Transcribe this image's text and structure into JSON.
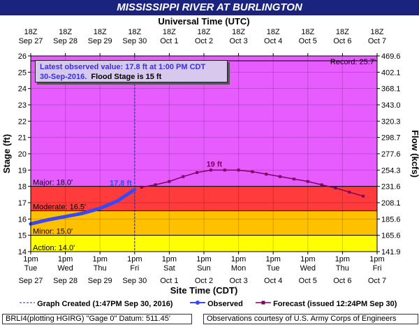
{
  "title": "MISSISSIPPI RIVER AT BURLINGTON",
  "chart_data": {
    "type": "line",
    "top_axis_title": "Universal Time (UTC)",
    "bottom_axis_title": "Site Time (CDT)",
    "ylabel": "Stage (ft)",
    "ylabel_right": "Flow (kcfs)",
    "ylim": [
      14,
      26
    ],
    "xlim": [
      0,
      10
    ],
    "top_ticks": [
      {
        "x": 0,
        "h": "18Z",
        "d": "Sep 27"
      },
      {
        "x": 1,
        "h": "18Z",
        "d": "Sep 28"
      },
      {
        "x": 2,
        "h": "18Z",
        "d": "Sep 29"
      },
      {
        "x": 3,
        "h": "18Z",
        "d": "Sep 30"
      },
      {
        "x": 4,
        "h": "18Z",
        "d": "Oct 1"
      },
      {
        "x": 5,
        "h": "18Z",
        "d": "Oct 2"
      },
      {
        "x": 6,
        "h": "18Z",
        "d": "Oct 3"
      },
      {
        "x": 7,
        "h": "18Z",
        "d": "Oct 4"
      },
      {
        "x": 8,
        "h": "18Z",
        "d": "Oct 5"
      },
      {
        "x": 9,
        "h": "18Z",
        "d": "Oct 6"
      },
      {
        "x": 10,
        "h": "18Z",
        "d": "Oct 7"
      }
    ],
    "bottom_ticks": [
      {
        "x": 0,
        "t": "1pm",
        "w": "Tue",
        "d": "Sep 27"
      },
      {
        "x": 1,
        "t": "1pm",
        "w": "Wed",
        "d": "Sep 28"
      },
      {
        "x": 2,
        "t": "1pm",
        "w": "Thu",
        "d": "Sep 29"
      },
      {
        "x": 3,
        "t": "1pm",
        "w": "Fri",
        "d": "Sep 30"
      },
      {
        "x": 4,
        "t": "1pm",
        "w": "Sat",
        "d": "Oct 1"
      },
      {
        "x": 5,
        "t": "1pm",
        "w": "Sun",
        "d": "Oct 2"
      },
      {
        "x": 6,
        "t": "1pm",
        "w": "Mon",
        "d": "Oct 3"
      },
      {
        "x": 7,
        "t": "1pm",
        "w": "Tue",
        "d": "Oct 4"
      },
      {
        "x": 8,
        "t": "1pm",
        "w": "Wed",
        "d": "Oct 5"
      },
      {
        "x": 9,
        "t": "1pm",
        "w": "Thu",
        "d": "Oct 6"
      },
      {
        "x": 10,
        "t": "1pm",
        "w": "Fri",
        "d": "Oct 7"
      }
    ],
    "y_ticks": [
      14,
      15,
      16,
      17,
      18,
      19,
      20,
      21,
      22,
      23,
      24,
      25,
      26
    ],
    "flow_ticks": [
      "141.9",
      "165.6",
      "185.6",
      "208.1",
      "231.6",
      "254.3",
      "277.6",
      "298.7",
      "320.3",
      "343.0",
      "368.1",
      "402.1",
      "469.6"
    ],
    "bands": [
      {
        "from": 14,
        "to": 15,
        "color": "#ffff00"
      },
      {
        "from": 15,
        "to": 16.5,
        "color": "#ffc000"
      },
      {
        "from": 16.5,
        "to": 18,
        "color": "#ff3b3b"
      },
      {
        "from": 18,
        "to": 26,
        "color": "#e65cff"
      }
    ],
    "thresholds": [
      {
        "label": "Major: 18.0'",
        "y": 18.0
      },
      {
        "label": "Moderate: 16.5'",
        "y": 16.5
      },
      {
        "label": "Minor: 15.0'",
        "y": 15.0
      },
      {
        "label": "Action: 14.0'",
        "y": 14.0
      }
    ],
    "record": {
      "label": "Record: 25.7'",
      "y": 25.7
    },
    "graph_created_x": 3,
    "observed": {
      "name": "Observed",
      "color": "#3a47f5",
      "points": [
        [
          0,
          15.7
        ],
        [
          0.5,
          15.95
        ],
        [
          1,
          16.15
        ],
        [
          1.5,
          16.35
        ],
        [
          2,
          16.65
        ],
        [
          2.5,
          17.1
        ],
        [
          3,
          17.8
        ]
      ],
      "label": "17.8 ft"
    },
    "forecast": {
      "name": "Forecast (issued 12:24PM Sep 30)",
      "color": "#800060",
      "points": [
        [
          3.2,
          17.95
        ],
        [
          3.6,
          18.1
        ],
        [
          4.0,
          18.3
        ],
        [
          4.4,
          18.6
        ],
        [
          4.8,
          18.85
        ],
        [
          5.2,
          19.0
        ],
        [
          5.6,
          19.0
        ],
        [
          6.0,
          19.0
        ],
        [
          6.4,
          18.9
        ],
        [
          6.8,
          18.75
        ],
        [
          7.2,
          18.6
        ],
        [
          7.6,
          18.45
        ],
        [
          8.0,
          18.3
        ],
        [
          8.4,
          18.1
        ],
        [
          8.8,
          17.9
        ],
        [
          9.2,
          17.65
        ],
        [
          9.6,
          17.4
        ]
      ],
      "crest_label": "19 ft",
      "crest_x": 5.3
    }
  },
  "infobox": {
    "line1": "Latest observed value: 17.8 ft at 1:00 PM CDT",
    "line2_blue": "30-Sep-2016.",
    "line2_black": "Flood Stage is 15 ft"
  },
  "legend": {
    "created": "Graph Created (1:47PM Sep 30, 2016)",
    "observed": "Observed",
    "forecast": "Forecast (issued 12:24PM Sep 30)"
  },
  "footer": {
    "left": "BRLI4(plotting HGIRG) \"Gage 0\" Datum: 511.45'",
    "right": "Observations courtesy of U.S. Army Corps of Engineers"
  }
}
